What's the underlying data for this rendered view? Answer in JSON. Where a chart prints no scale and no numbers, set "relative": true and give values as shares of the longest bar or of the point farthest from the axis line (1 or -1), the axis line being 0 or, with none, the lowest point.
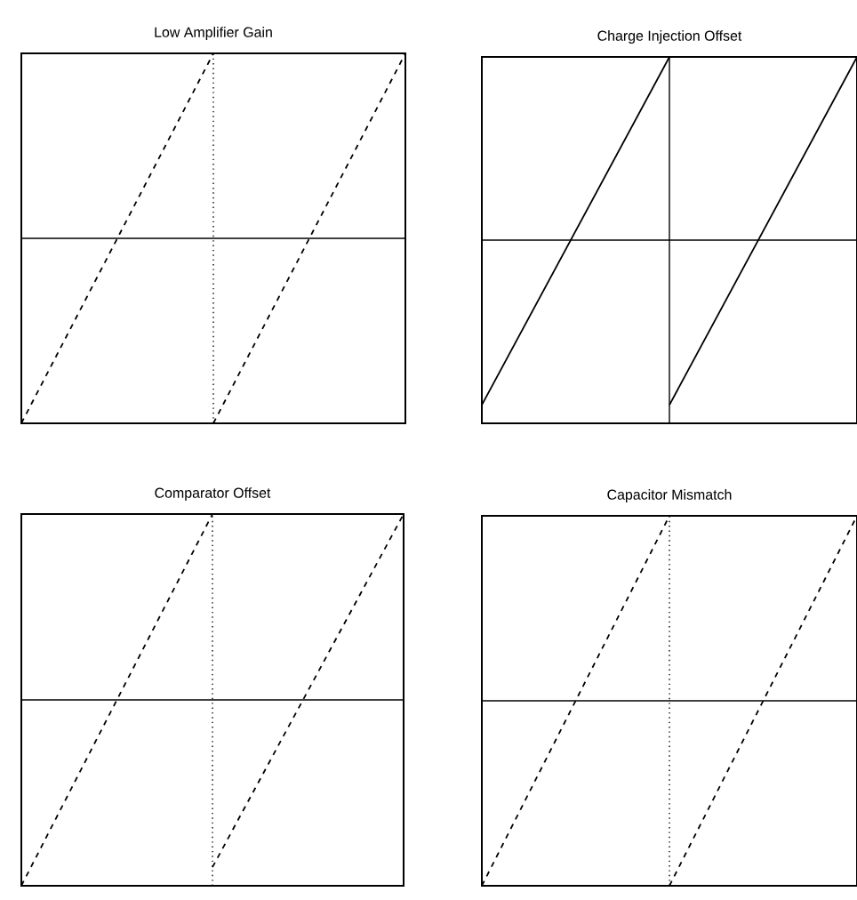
{
  "chart_data": [
    {
      "type": "line",
      "title": "Low Amplifier Gain",
      "relative": true,
      "categories": [
        null,
        null,
        null
      ],
      "line_style": "dashed",
      "series": [
        {
          "color": "#000000",
          "values": [
            -1,
            1,
            null
          ]
        },
        {
          "color": "#000000",
          "values": [
            null,
            -1,
            1
          ]
        }
      ]
    },
    {
      "type": "line",
      "title": "Charge Injection Offset",
      "relative": true,
      "categories": [
        null,
        null,
        null
      ],
      "line_style": "solid",
      "series": [
        {
          "color": "#000000",
          "values": [
            -0.9,
            1,
            null
          ]
        },
        {
          "color": "#000000",
          "values": [
            null,
            -0.9,
            1
          ]
        }
      ]
    },
    {
      "type": "line",
      "title": "Comparator Offset",
      "relative": true,
      "categories": [
        null,
        null,
        null
      ],
      "line_style": "dashed",
      "series": [
        {
          "color": "#000000",
          "values": [
            -1,
            1,
            null
          ]
        },
        {
          "color": "#000000",
          "values": [
            null,
            -0.9,
            1
          ]
        }
      ]
    },
    {
      "type": "line",
      "title": "Capacitor Mismatch",
      "relative": true,
      "categories": [
        null,
        null,
        null
      ],
      "line_style": "dashed",
      "series": [
        {
          "color": "#000000",
          "values": [
            -1,
            1,
            null
          ]
        },
        {
          "color": "#000000",
          "values": [
            null,
            -1,
            1
          ]
        }
      ]
    }
  ]
}
